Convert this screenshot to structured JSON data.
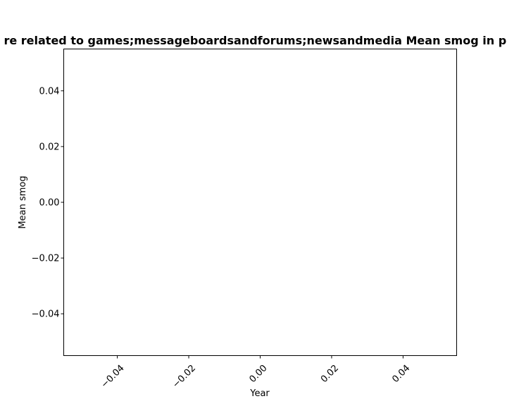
{
  "chart_data": {
    "type": "line",
    "title": "re related to games;messageboardsandforums;newsandmedia Mean smog in pri",
    "xlabel": "Year",
    "ylabel": "Mean smog",
    "xlim": [
      -0.055,
      0.055
    ],
    "ylim": [
      -0.055,
      0.055
    ],
    "x_ticks": [
      -0.04,
      -0.02,
      0.0,
      0.02,
      0.04
    ],
    "x_tick_labels": [
      "−0.04",
      "−0.02",
      "0.00",
      "0.02",
      "0.04"
    ],
    "y_ticks": [
      0.04,
      0.02,
      0.0,
      -0.02,
      -0.04
    ],
    "y_tick_labels": [
      "0.04",
      "0.02",
      "0.00",
      "−0.02",
      "−0.04"
    ],
    "series": [],
    "grid": false,
    "legend": "none"
  }
}
